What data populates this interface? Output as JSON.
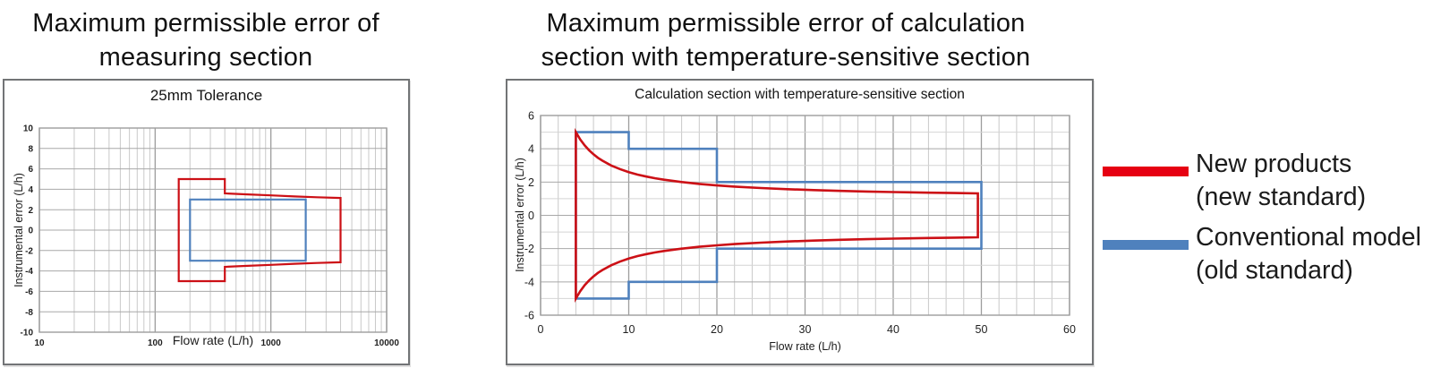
{
  "titles": {
    "left_line1": "Maximum permissible error of",
    "left_line2": "measuring section",
    "right_line1": "Maximum permissible error of calculation",
    "right_line2": "section with temperature-sensitive section"
  },
  "legend": {
    "items": [
      {
        "label_line1": "New products",
        "label_line2": "(new standard)",
        "color": "#e60012"
      },
      {
        "label_line1": "Conventional model",
        "label_line2": "(old standard)",
        "color": "#4f81bd"
      }
    ]
  },
  "chart_data": [
    {
      "id": "measuring-section",
      "type": "line",
      "title": "25mm Tolerance",
      "xlabel": "Flow rate (L/h)",
      "ylabel": "Instrumental error (L/h)",
      "x_scale": "log",
      "xlim": [
        10,
        10000
      ],
      "x_ticks": [
        10,
        100,
        1000,
        10000
      ],
      "ylim": [
        -10,
        10
      ],
      "y_ticks": [
        10,
        8,
        6,
        4,
        2,
        0,
        -2,
        -4,
        -6,
        -8,
        -10
      ],
      "grid": true,
      "legend_position": "none",
      "series": [
        {
          "name": "Conventional model (old standard)",
          "color": "#4f81bd",
          "closed": true,
          "points": [
            [
              200,
              3
            ],
            [
              2000,
              3
            ],
            [
              2000,
              -3
            ],
            [
              200,
              -3
            ]
          ]
        },
        {
          "name": "New products (new standard)",
          "color": "#cc1016",
          "closed": true,
          "points": [
            [
              160,
              5
            ],
            [
              400,
              5
            ],
            [
              400,
              3.6
            ],
            [
              630,
              3.5
            ],
            [
              1000,
              3.4
            ],
            [
              1600,
              3.3
            ],
            [
              2500,
              3.22
            ],
            [
              4000,
              3.15
            ],
            [
              4000,
              -3.15
            ],
            [
              2500,
              -3.22
            ],
            [
              1600,
              -3.3
            ],
            [
              1000,
              -3.4
            ],
            [
              630,
              -3.5
            ],
            [
              400,
              -3.6
            ],
            [
              400,
              -5
            ],
            [
              160,
              -5
            ]
          ]
        }
      ]
    },
    {
      "id": "calculation-section",
      "type": "line",
      "title": "Calculation section with temperature-sensitive section",
      "xlabel": "Flow rate (L/h)",
      "ylabel": "Instrumental error (L/h)",
      "x_scale": "linear",
      "xlim": [
        0,
        60
      ],
      "x_ticks": [
        0,
        10,
        20,
        30,
        40,
        50,
        60
      ],
      "x_minor_step": 2,
      "ylim": [
        -6,
        6
      ],
      "y_ticks": [
        6,
        4,
        2,
        0,
        -2,
        -4,
        -6
      ],
      "y_minor_step": 1,
      "grid": true,
      "legend_position": "none",
      "series": [
        {
          "name": "Conventional model (old standard)",
          "color": "#4f81bd",
          "closed": true,
          "points": [
            [
              4,
              5
            ],
            [
              10,
              5
            ],
            [
              10,
              4
            ],
            [
              20,
              4
            ],
            [
              20,
              2
            ],
            [
              50,
              2
            ],
            [
              50,
              -2
            ],
            [
              20,
              -2
            ],
            [
              20,
              -4
            ],
            [
              10,
              -4
            ],
            [
              10,
              -5
            ],
            [
              4,
              -5
            ]
          ]
        },
        {
          "name": "New products (new standard)",
          "color": "#cc1016",
          "closed": true,
          "points": [
            [
              4,
              5
            ],
            [
              4.5,
              4.56
            ],
            [
              5,
              4.2
            ],
            [
              5.5,
              3.91
            ],
            [
              6,
              3.67
            ],
            [
              6.5,
              3.46
            ],
            [
              7,
              3.29
            ],
            [
              8,
              3
            ],
            [
              9,
              2.78
            ],
            [
              10,
              2.6
            ],
            [
              11,
              2.45
            ],
            [
              12,
              2.33
            ],
            [
              13,
              2.23
            ],
            [
              14,
              2.14
            ],
            [
              16,
              2
            ],
            [
              18,
              1.89
            ],
            [
              20,
              1.8
            ],
            [
              22,
              1.73
            ],
            [
              25,
              1.64
            ],
            [
              28,
              1.57
            ],
            [
              31,
              1.52
            ],
            [
              34,
              1.47
            ],
            [
              37,
              1.43
            ],
            [
              40,
              1.4
            ],
            [
              44,
              1.36
            ],
            [
              47,
              1.34
            ],
            [
              49.6,
              1.32
            ],
            [
              49.6,
              -1.32
            ],
            [
              47,
              -1.34
            ],
            [
              44,
              -1.36
            ],
            [
              40,
              -1.4
            ],
            [
              37,
              -1.43
            ],
            [
              34,
              -1.47
            ],
            [
              31,
              -1.52
            ],
            [
              28,
              -1.57
            ],
            [
              25,
              -1.64
            ],
            [
              22,
              -1.73
            ],
            [
              20,
              -1.8
            ],
            [
              18,
              -1.89
            ],
            [
              16,
              -2
            ],
            [
              14,
              -2.14
            ],
            [
              13,
              -2.23
            ],
            [
              12,
              -2.33
            ],
            [
              11,
              -2.45
            ],
            [
              10,
              -2.6
            ],
            [
              9,
              -2.78
            ],
            [
              8,
              -3
            ],
            [
              7,
              -3.29
            ],
            [
              6.5,
              -3.46
            ],
            [
              6,
              -3.67
            ],
            [
              5.5,
              -3.91
            ],
            [
              5,
              -4.2
            ],
            [
              4.5,
              -4.56
            ],
            [
              4,
              -5
            ]
          ]
        }
      ]
    }
  ]
}
